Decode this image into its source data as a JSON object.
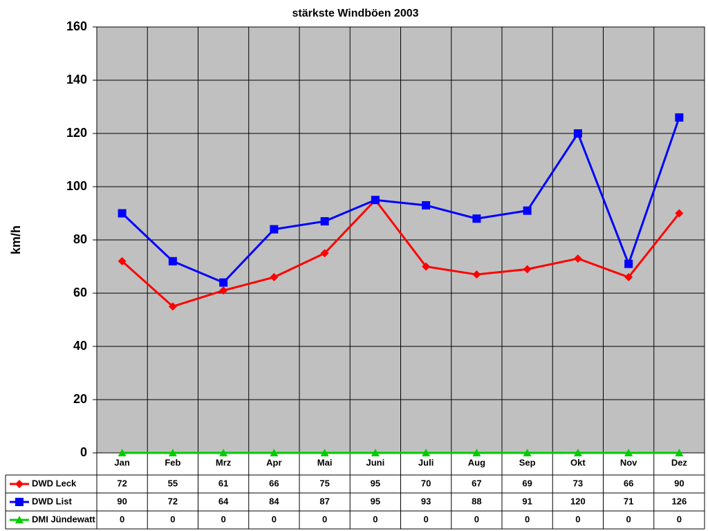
{
  "chart_data": {
    "type": "line",
    "title": "stärkste Windböen 2003",
    "y_label": "km/h",
    "categories": [
      "Jan",
      "Feb",
      "Mrz",
      "Apr",
      "Mai",
      "Juni",
      "Juli",
      "Aug",
      "Sep",
      "Okt",
      "Nov",
      "Dez"
    ],
    "series": [
      {
        "name": "DWD Leck",
        "color": "#ff0000",
        "marker": "diamond",
        "values": [
          72,
          55,
          61,
          66,
          75,
          95,
          70,
          67,
          69,
          73,
          66,
          90
        ]
      },
      {
        "name": "DWD List",
        "color": "#0000ff",
        "marker": "square",
        "values": [
          90,
          72,
          64,
          84,
          87,
          95,
          93,
          88,
          91,
          120,
          71,
          126
        ]
      },
      {
        "name": "DMI Jündewatt",
        "color": "#00cc00",
        "marker": "triangle",
        "values": [
          0,
          0,
          0,
          0,
          0,
          0,
          0,
          0,
          0,
          0,
          0,
          0
        ]
      }
    ],
    "ylim": [
      0,
      160
    ],
    "yticks": [
      0,
      20,
      40,
      60,
      80,
      100,
      120,
      140,
      160
    ],
    "grid": true,
    "background": "#c0c0c0"
  }
}
